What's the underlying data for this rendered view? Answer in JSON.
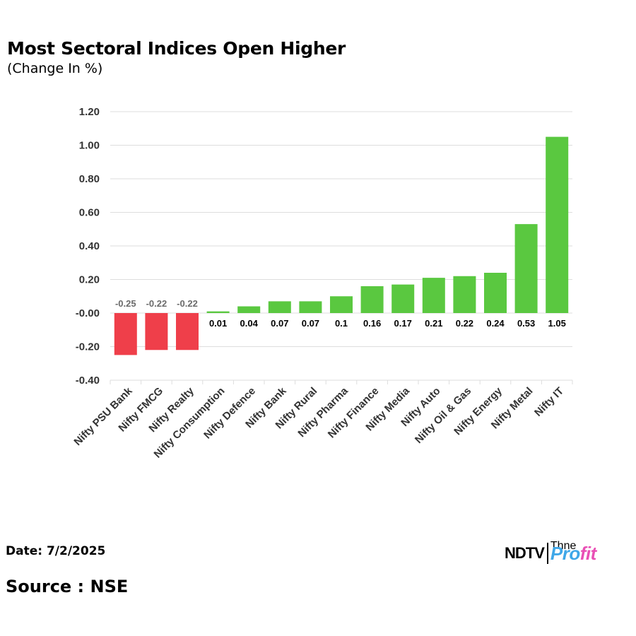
{
  "header": {
    "title": "Most Sectoral Indices Open Higher",
    "subtitle": "(Change In %)"
  },
  "footer": {
    "date": "Date: 7/2/2025",
    "source": "Source : NSE"
  },
  "logo": {
    "ndtv": "NDTV",
    "tagline": "Thne",
    "profit_blue": "Pro",
    "profit_pink": "fit"
  },
  "colors": {
    "positive": "#5ac840",
    "negative": "#ef3f4a",
    "grid": "#dddddd",
    "axis_text": "#333333",
    "neg_label": "#6b6b6b"
  },
  "chart_data": {
    "type": "bar",
    "title": "Most Sectoral Indices Open Higher",
    "subtitle": "(Change In %)",
    "xlabel": "",
    "ylabel": "",
    "ylim": [
      -0.4,
      1.2
    ],
    "yticks": [
      1.2,
      1.0,
      0.8,
      0.6,
      0.4,
      0.2,
      0.0,
      -0.2,
      -0.4
    ],
    "ytick_labels": [
      "1.20",
      "1.00",
      "0.80",
      "0.60",
      "0.40",
      "0.20",
      "-0.00",
      "-0.20",
      "-0.40"
    ],
    "grid": true,
    "categories": [
      "Nifty PSU Bank",
      "Nifty FMCG",
      "Nifty Realty",
      "Nifty Consumption",
      "Nifty Defence",
      "Nifty Bank",
      "Nifty Rural",
      "Nifty Pharma",
      "Nifty Finance",
      "Nifty Media",
      "Nifty Auto",
      "Nifty Oil & Gas",
      "Nifty Energy",
      "Nifty Metal",
      "Nifty IT"
    ],
    "values": [
      -0.25,
      -0.22,
      -0.22,
      0.01,
      0.04,
      0.07,
      0.07,
      0.1,
      0.16,
      0.17,
      0.21,
      0.22,
      0.24,
      0.53,
      1.05
    ],
    "data_labels": [
      "-0.25",
      "-0.22",
      "-0.22",
      "0.01",
      "0.04",
      "0.07",
      "0.07",
      "0.1",
      "0.16",
      "0.17",
      "0.21",
      "0.22",
      "0.24",
      "0.53",
      "1.05"
    ]
  }
}
